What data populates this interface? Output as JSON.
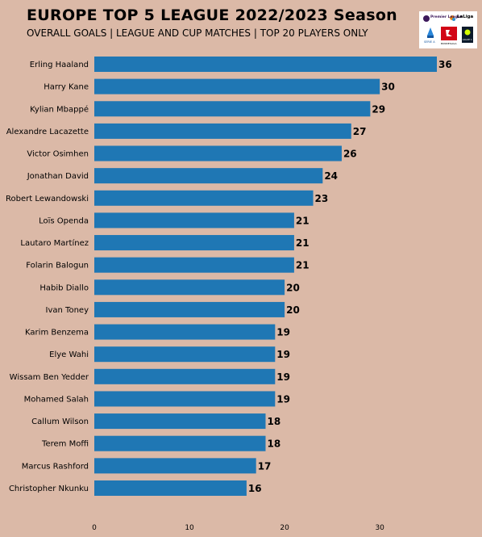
{
  "header": {
    "title": "EUROPE TOP 5 LEAGUE 2022/2023 Season",
    "subtitle": "OVERALL GOALS | LEAGUE AND CUP MATCHES | TOP 20 PLAYERS ONLY"
  },
  "logos": {
    "premier_league": "Premier League",
    "laliga": "LaLiga",
    "serie_a": "SERIE A",
    "bundesliga": "BUNDESLIGA",
    "ligue1": "LIGUE 1"
  },
  "chart_data": {
    "type": "bar",
    "orientation": "horizontal",
    "categories": [
      "Erling Haaland",
      "Harry Kane",
      "Kylian Mbappé",
      "Alexandre Lacazette",
      "Victor Osimhen",
      "Jonathan David",
      "Robert Lewandowski",
      "Loïs Openda",
      "Lautaro Martínez",
      "Folarin Balogun",
      "Habib Diallo",
      "Ivan Toney",
      "Karim Benzema",
      "Elye Wahi",
      "Wissam Ben Yedder",
      "Mohamed Salah",
      "Callum Wilson",
      "Terem Moffi",
      "Marcus Rashford",
      "Christopher Nkunku"
    ],
    "values": [
      36,
      30,
      29,
      27,
      26,
      24,
      23,
      21,
      21,
      21,
      20,
      20,
      19,
      19,
      19,
      19,
      18,
      18,
      17,
      16
    ],
    "xlim": [
      0,
      36
    ],
    "xticks": [
      0,
      10,
      20,
      30
    ],
    "xlabel": "",
    "ylabel": "",
    "grid": false,
    "bar_color": "#1f77b4",
    "background_color": "#dbb9a7"
  }
}
